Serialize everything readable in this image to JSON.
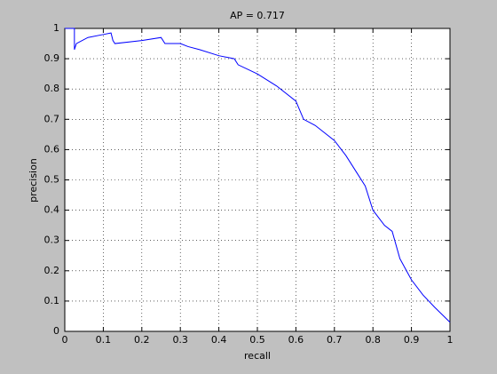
{
  "chart_data": {
    "type": "line",
    "title": "AP = 0.717",
    "x_label": "recall",
    "y_label": "precision",
    "x": [
      0,
      0.025,
      0.025,
      0.03,
      0.06,
      0.1,
      0.12,
      0.125,
      0.13,
      0.2,
      0.25,
      0.26,
      0.3,
      0.32,
      0.35,
      0.4,
      0.44,
      0.45,
      0.5,
      0.55,
      0.6,
      0.62,
      0.65,
      0.7,
      0.73,
      0.76,
      0.78,
      0.8,
      0.83,
      0.85,
      0.87,
      0.9,
      0.93,
      0.96,
      1.0
    ],
    "values": [
      1,
      1,
      0.93,
      0.95,
      0.97,
      0.98,
      0.985,
      0.96,
      0.95,
      0.96,
      0.97,
      0.95,
      0.95,
      0.94,
      0.93,
      0.91,
      0.9,
      0.88,
      0.85,
      0.81,
      0.76,
      0.7,
      0.68,
      0.63,
      0.58,
      0.52,
      0.48,
      0.4,
      0.35,
      0.33,
      0.24,
      0.17,
      0.12,
      0.08,
      0.03
    ],
    "color": "#0000ff",
    "xlim": [
      0,
      1
    ],
    "xticks": [
      0,
      0.1,
      0.2,
      0.3,
      0.4,
      0.5,
      0.6,
      0.7,
      0.8,
      0.9,
      1
    ],
    "ylim": [
      0,
      1
    ],
    "yticks": [
      0,
      0.1,
      0.2,
      0.3,
      0.4,
      0.5,
      0.6,
      0.7,
      0.8,
      0.9,
      1
    ],
    "grid": true
  }
}
